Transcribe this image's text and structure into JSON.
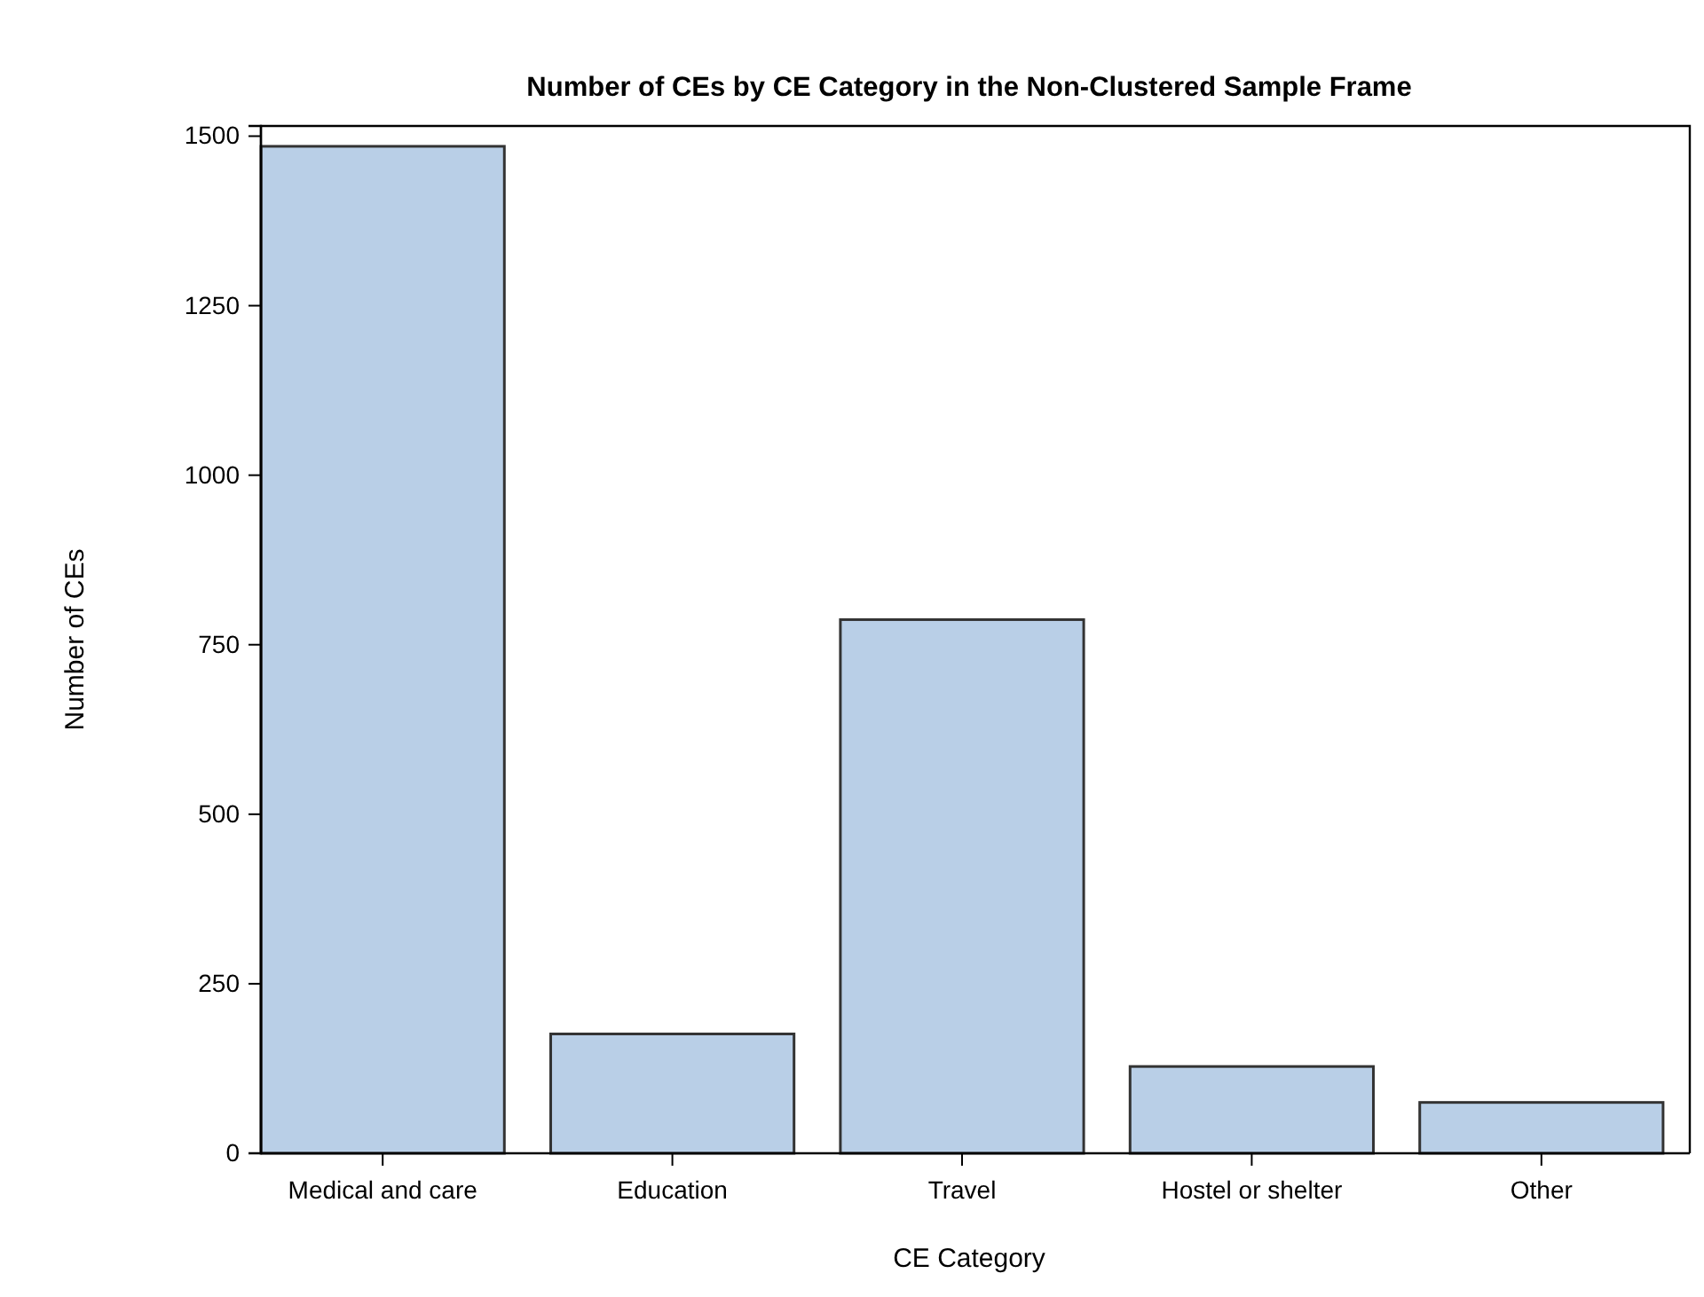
{
  "chart_data": {
    "type": "bar",
    "title": "Number of CEs by CE Category in the Non-Clustered Sample Frame",
    "xlabel": "CE Category",
    "ylabel": "Number of CEs",
    "categories": [
      "Medical and care",
      "Education",
      "Travel",
      "Hostel or shelter",
      "Other"
    ],
    "values": [
      1485,
      176,
      787,
      128,
      75
    ],
    "color": "#b9cfe7",
    "ylim": [
      0,
      1515
    ],
    "yticks": [
      0,
      250,
      500,
      750,
      1000,
      1250,
      1500
    ],
    "grid": false
  }
}
